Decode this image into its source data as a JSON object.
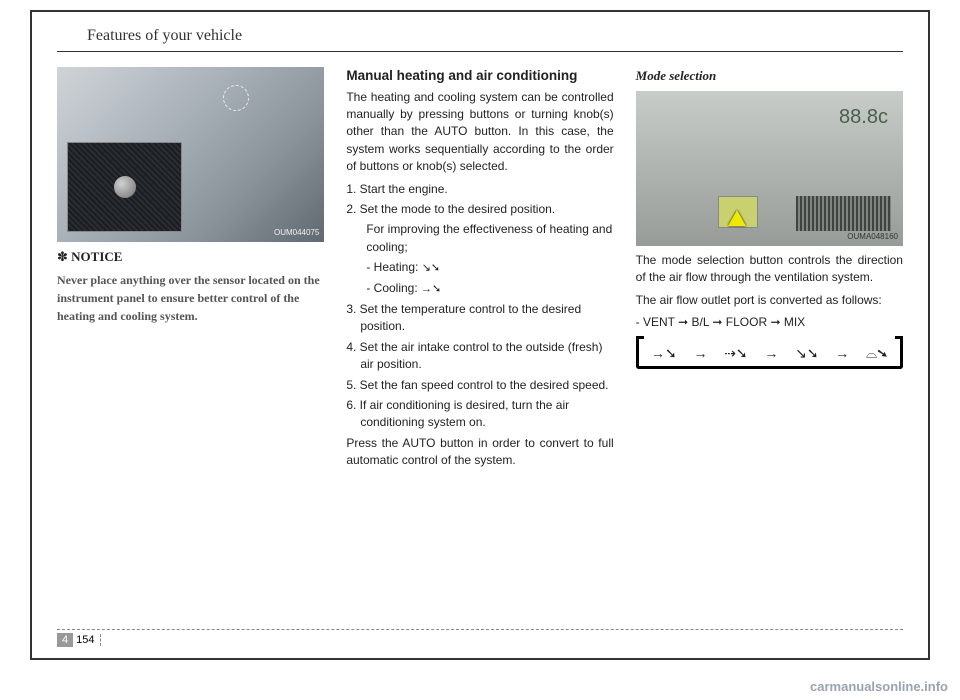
{
  "header": {
    "title": "Features of your vehicle"
  },
  "col1": {
    "photo_code": "OUM044075",
    "notice_mark": "✽",
    "notice_label": "NOTICE",
    "notice_text": "Never place anything over the sensor located on the instrument panel to ensure better control of the heating and cooling system."
  },
  "col2": {
    "heading": "Manual heating and air condi­tioning",
    "intro": "The heating and cooling system can be controlled manually by pressing buttons or turning knob(s) other than the AUTO button. In this case, the system works sequentially according to the order of buttons or knob(s) selected.",
    "s1": "1. Start the engine.",
    "s2": "2. Set the mode to the desired posi­tion.",
    "s2_sub": "For improving the effectiveness of heating and cooling;",
    "s2_heat": "- Heating:",
    "s2_cool": "- Cooling:",
    "s3": "3. Set the temperature control to the desired position.",
    "s4": "4. Set the air intake control to the outside (fresh) air position.",
    "s5": "5. Set the fan speed control to the desired speed.",
    "s6": "6. If air conditioning is desired, turn the air conditioning system on.",
    "outro": "Press the AUTO button in order to convert to full automatic control of the system."
  },
  "col3": {
    "heading": "Mode selection",
    "photo_code": "OUMA048160",
    "display_text": "88.8c",
    "p1": "The mode selection button controls the direction of the air flow through the ventilation system.",
    "p2": "The air flow outlet port is converted as follows:",
    "flow": "- VENT ➞ B/L ➞ FLOOR ➞ MIX"
  },
  "footer": {
    "chapter": "4",
    "page": "154"
  },
  "watermark": "carmanualsonline.info",
  "colors": {
    "border": "#333333",
    "text": "#222222",
    "notice_text": "#555555",
    "watermark": "#9aa3b0",
    "chapter_bg": "#999999"
  }
}
